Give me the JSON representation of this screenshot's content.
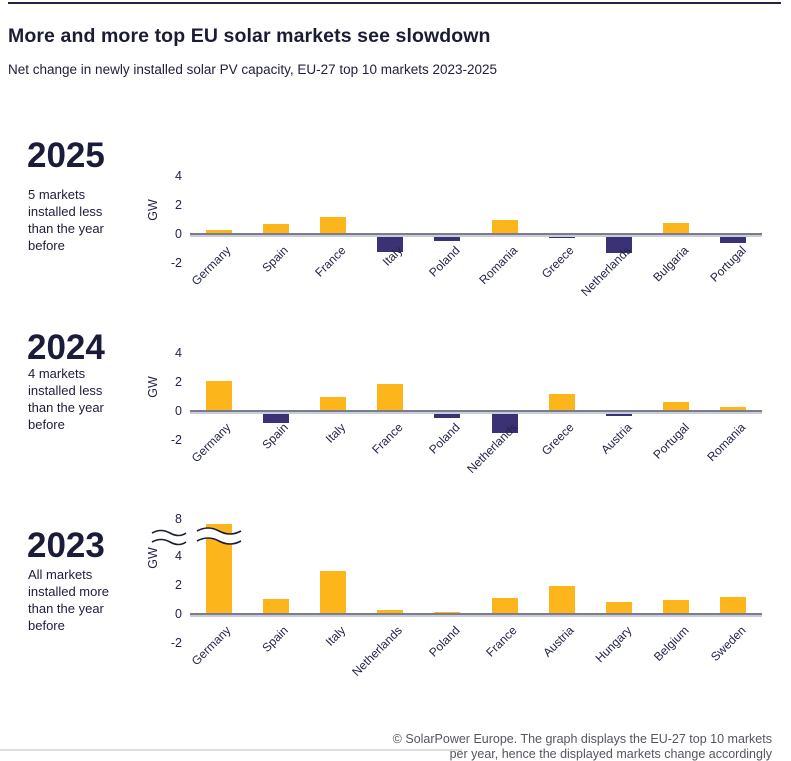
{
  "page": {
    "title": "More and more top EU solar markets see slowdown",
    "subtitle": "Net change in newly installed solar PV capacity, EU-27 top 10 markets 2023-2025",
    "footer_line1": "© SolarPower Europe. The graph displays the EU-27 top 10 markets",
    "footer_line2": "per year, hence the displayed markets change accordingly"
  },
  "colors": {
    "positive_bar": "#FCB61B",
    "negative_bar": "#3B3276",
    "navy_text": "#1B1B3A",
    "axis_line": "#7C7C8A"
  },
  "chart_data": [
    {
      "type": "bar",
      "year": "2025",
      "note": "5 markets installed less than the year before",
      "ylabel": "GW",
      "yticks": [
        4,
        2,
        0,
        -2
      ],
      "ylim": [
        -2.5,
        4.5
      ],
      "grid": false,
      "axis_break": false,
      "categories": [
        "Germany",
        "Spain",
        "France",
        "Italy",
        "Poland",
        "Romania",
        "Greece",
        "Netherlands",
        "Bulgaria",
        "Portugal"
      ],
      "values": [
        0.25,
        0.7,
        1.2,
        -1.25,
        -0.5,
        1.0,
        -0.25,
        -1.3,
        0.75,
        -0.65
      ]
    },
    {
      "type": "bar",
      "year": "2024",
      "note": "4 markets installed less than the year before",
      "ylabel": "GW",
      "yticks": [
        4,
        2,
        0,
        -2
      ],
      "ylim": [
        -2.5,
        4.5
      ],
      "grid": false,
      "axis_break": false,
      "categories": [
        "Germany",
        "Spain",
        "Italy",
        "France",
        "Poland",
        "Netherlands",
        "Greece",
        "Austria",
        "Portugal",
        "Romania"
      ],
      "values": [
        2.1,
        -0.8,
        0.95,
        1.9,
        -0.5,
        -1.5,
        1.15,
        -0.35,
        0.6,
        0.25
      ]
    },
    {
      "type": "bar",
      "year": "2023",
      "note": "All markets installed more than the year before",
      "ylabel": "GW",
      "yticks": [
        8,
        4,
        2,
        0,
        -2
      ],
      "ylim": [
        -2.5,
        8
      ],
      "grid": false,
      "axis_break": true,
      "categories": [
        "Germany",
        "Spain",
        "Italy",
        "Netherlands",
        "Poland",
        "France",
        "Austria",
        "Hungary",
        "Belgium",
        "Sweden"
      ],
      "values": [
        7.5,
        1.05,
        3.0,
        0.25,
        0.15,
        1.1,
        1.95,
        0.8,
        0.95,
        1.15
      ]
    }
  ]
}
